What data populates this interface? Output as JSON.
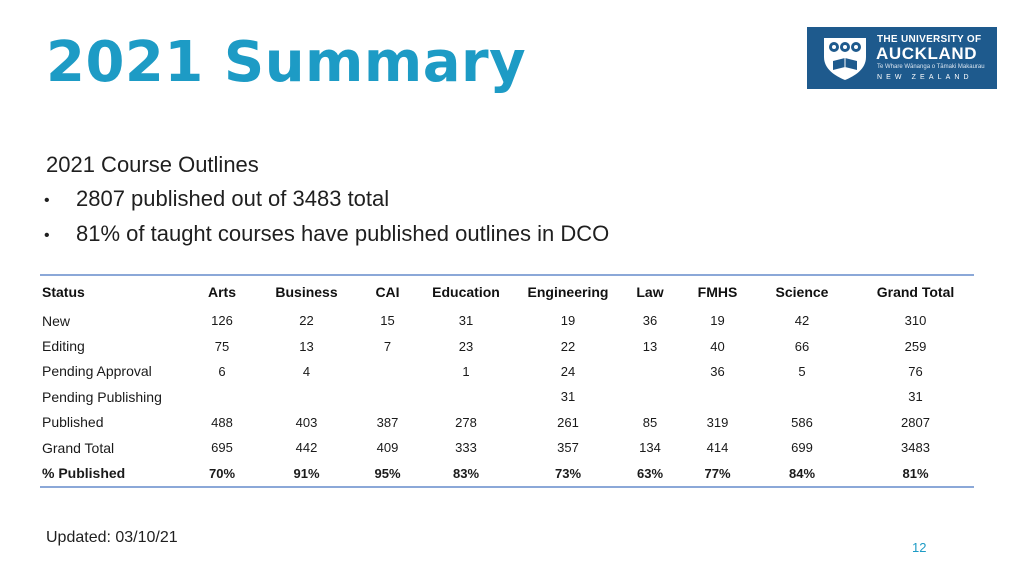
{
  "title": "2021 Summary",
  "logo": {
    "line1": "THE UNIVERSITY OF",
    "line2": "AUCKLAND",
    "line3": "Te Whare Wānanga o Tāmaki Makaurau",
    "line4": "NEW ZEALAND",
    "colors": {
      "background": "#1e5a8d",
      "text": "#ffffff"
    }
  },
  "subheading": "2021 Course Outlines",
  "bullets": [
    "2807 published out of 3483 total",
    "81% of taught courses have published outlines in DCO"
  ],
  "table": {
    "headers": [
      "Status",
      "Arts",
      "Business",
      "CAI",
      "Education",
      "Engineering",
      "Law",
      "FMHS",
      "Science",
      "Grand Total"
    ],
    "rows": [
      [
        "New",
        "126",
        "22",
        "15",
        "31",
        "19",
        "36",
        "19",
        "42",
        "310"
      ],
      [
        "Editing",
        "75",
        "13",
        "7",
        "23",
        "22",
        "13",
        "40",
        "66",
        "259"
      ],
      [
        "Pending Approval",
        "6",
        "4",
        "",
        "1",
        "24",
        "",
        "36",
        "5",
        "76"
      ],
      [
        "Pending Publishing",
        "",
        "",
        "",
        "",
        "31",
        "",
        "",
        "",
        "31"
      ],
      [
        "Published",
        "488",
        "403",
        "387",
        "278",
        "261",
        "85",
        "319",
        "586",
        "2807"
      ],
      [
        "Grand Total",
        "695",
        "442",
        "409",
        "333",
        "357",
        "134",
        "414",
        "699",
        "3483"
      ],
      [
        "% Published",
        "70%",
        "91%",
        "95%",
        "83%",
        "73%",
        "63%",
        "77%",
        "84%",
        "81%"
      ]
    ]
  },
  "updated": "Updated: 03/10/21",
  "page_number": "12",
  "colors": {
    "accent": "#1d9bc5",
    "table_rule": "#8ba8d8"
  }
}
